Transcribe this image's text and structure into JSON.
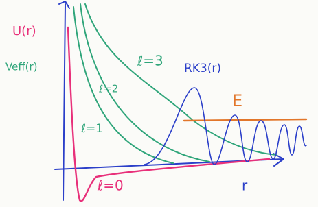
{
  "axes": {
    "y_label": "U(r)",
    "y_label_2": "Veff(r)",
    "x_label": "r"
  },
  "curves": [
    {
      "label": "ℓ=3"
    },
    {
      "label": "ℓ=2"
    },
    {
      "label": "ℓ=1"
    },
    {
      "label": "ℓ=0"
    }
  ],
  "wavefunction": {
    "label": "RK3(r)"
  },
  "energy": {
    "label": "E"
  }
}
